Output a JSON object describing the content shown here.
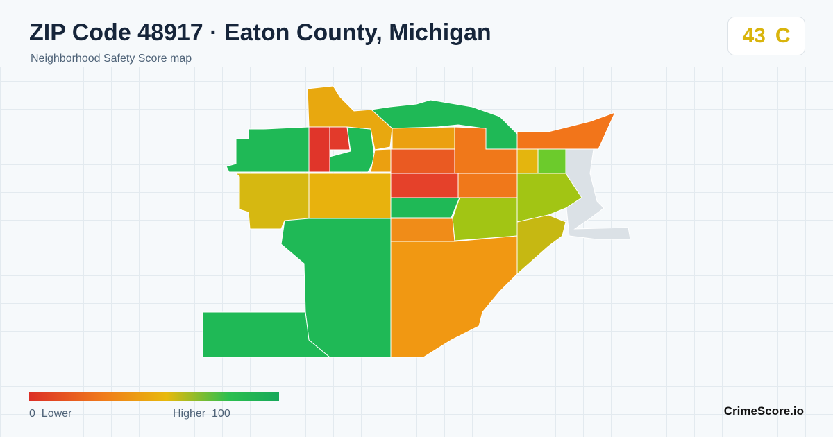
{
  "header": {
    "title": "ZIP Code 48917 · Eaton County, Michigan",
    "subtitle": "Neighborhood Safety Score map"
  },
  "score": {
    "value": "43",
    "grade": "C"
  },
  "legend": {
    "min": "0",
    "min_label": "Lower",
    "max_label": "Higher",
    "max": "100"
  },
  "brand": "CrimeScore.io"
}
